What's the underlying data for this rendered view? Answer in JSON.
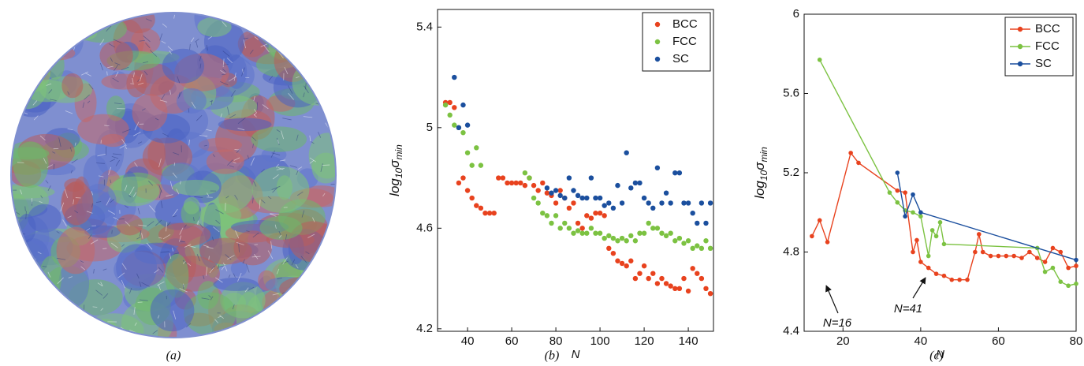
{
  "image": {
    "caption": "(a)"
  },
  "chart_data": [
    {
      "type": "scatter",
      "caption": "(b)",
      "xlabel": "N",
      "ylabel": [
        "log",
        "10",
        "σ",
        "min"
      ],
      "xlim": [
        26.4,
        151.4
      ],
      "ylim": [
        4.19,
        5.47
      ],
      "xticks": [
        40,
        60,
        80,
        100,
        120,
        140
      ],
      "yticks": [
        4.2,
        4.6,
        5,
        5.4
      ],
      "legend": "upper right",
      "x": [
        30,
        32,
        34,
        36,
        38,
        40,
        42,
        44,
        46,
        48,
        50,
        52,
        54,
        56,
        58,
        60,
        62,
        64,
        66,
        68,
        70,
        72,
        74,
        76,
        78,
        80,
        82,
        84,
        86,
        88,
        90,
        92,
        94,
        96,
        98,
        100,
        102,
        104,
        106,
        108,
        110,
        112,
        114,
        116,
        118,
        120,
        122,
        124,
        126,
        128,
        130,
        132,
        134,
        136,
        138,
        140,
        142,
        144,
        146,
        148,
        150
      ],
      "series": [
        {
          "name": "BCC",
          "color": "#e8421e",
          "values": [
            5.1,
            5.1,
            5.08,
            4.78,
            4.8,
            4.75,
            4.72,
            4.69,
            4.68,
            4.66,
            4.66,
            4.66,
            4.8,
            4.8,
            4.78,
            4.78,
            4.78,
            4.78,
            4.77,
            4.8,
            4.77,
            4.75,
            4.78,
            4.74,
            4.73,
            4.7,
            4.75,
            4.72,
            4.68,
            4.7,
            4.62,
            4.6,
            4.65,
            4.64,
            4.66,
            4.66,
            4.65,
            4.52,
            4.5,
            4.47,
            4.46,
            4.45,
            4.47,
            4.4,
            4.42,
            4.45,
            4.4,
            4.42,
            4.38,
            4.4,
            4.38,
            4.37,
            4.36,
            4.36,
            4.4,
            4.35,
            4.44,
            4.42,
            4.4,
            4.36,
            4.34
          ]
        },
        {
          "name": "FCC",
          "color": "#7cc242",
          "values": [
            5.09,
            5.05,
            5.01,
            5.0,
            4.98,
            4.9,
            4.85,
            4.92,
            4.85,
            null,
            null,
            null,
            null,
            null,
            null,
            null,
            null,
            null,
            4.82,
            4.8,
            4.72,
            4.7,
            4.66,
            4.65,
            4.62,
            4.65,
            4.6,
            4.62,
            4.6,
            4.58,
            4.59,
            4.58,
            4.58,
            4.6,
            4.58,
            4.58,
            4.56,
            4.57,
            4.56,
            4.55,
            4.56,
            4.55,
            4.57,
            4.55,
            4.58,
            4.58,
            4.62,
            4.6,
            4.6,
            4.58,
            4.57,
            4.58,
            4.55,
            4.56,
            4.54,
            4.55,
            4.52,
            4.53,
            4.52,
            4.55,
            4.52
          ]
        },
        {
          "name": "SC",
          "color": "#1b4f9e",
          "values": [
            null,
            null,
            5.2,
            5.0,
            5.09,
            5.01,
            null,
            null,
            null,
            null,
            null,
            null,
            null,
            null,
            null,
            null,
            null,
            null,
            null,
            null,
            null,
            null,
            null,
            4.76,
            4.74,
            4.75,
            4.73,
            4.72,
            4.8,
            4.75,
            4.73,
            4.72,
            4.72,
            4.8,
            4.72,
            4.72,
            4.69,
            4.7,
            4.68,
            4.77,
            4.7,
            4.9,
            4.76,
            4.78,
            4.78,
            4.72,
            4.7,
            4.68,
            4.84,
            4.7,
            4.74,
            4.7,
            4.82,
            4.82,
            4.7,
            4.7,
            4.66,
            4.62,
            4.7,
            4.62,
            4.7
          ]
        }
      ]
    },
    {
      "type": "line",
      "caption": "(c)",
      "xlabel": "N",
      "ylabel": [
        "log",
        "10",
        "σ",
        "min"
      ],
      "xlim": [
        10,
        80
      ],
      "ylim": [
        4.4,
        6
      ],
      "xticks": [
        20,
        40,
        60,
        80
      ],
      "yticks": [
        4.4,
        4.8,
        5.2,
        5.6,
        6
      ],
      "legend": "upper right",
      "annotations": [
        "N=16",
        "N=41"
      ],
      "series": [
        {
          "name": "BCC",
          "color": "#e8421e",
          "x": [
            12,
            14,
            16,
            22,
            24,
            34,
            36,
            38,
            39,
            40,
            42,
            44,
            46,
            48,
            50,
            52,
            54,
            55,
            56,
            58,
            60,
            62,
            64,
            66,
            68,
            70,
            72,
            74,
            76,
            78,
            80
          ],
          "values": [
            4.88,
            4.96,
            4.85,
            5.3,
            5.25,
            5.11,
            5.1,
            4.8,
            4.86,
            4.75,
            4.72,
            4.69,
            4.68,
            4.66,
            4.66,
            4.66,
            4.8,
            4.89,
            4.8,
            4.78,
            4.78,
            4.78,
            4.78,
            4.77,
            4.8,
            4.77,
            4.75,
            4.82,
            4.8,
            4.72,
            4.73
          ]
        },
        {
          "name": "FCC",
          "color": "#7cc242",
          "x": [
            14,
            32,
            34,
            36,
            38,
            40,
            42,
            43,
            44,
            45,
            46,
            70,
            72,
            74,
            76,
            78,
            80
          ],
          "values": [
            5.77,
            5.1,
            5.05,
            5.01,
            5.0,
            4.98,
            4.78,
            4.91,
            4.88,
            4.95,
            4.84,
            4.82,
            4.7,
            4.72,
            4.65,
            4.63,
            4.64
          ]
        },
        {
          "name": "SC",
          "color": "#1b4f9e",
          "x": [
            34,
            36,
            38,
            40,
            80
          ],
          "values": [
            5.2,
            4.98,
            5.09,
            5.0,
            4.76
          ]
        }
      ]
    }
  ]
}
